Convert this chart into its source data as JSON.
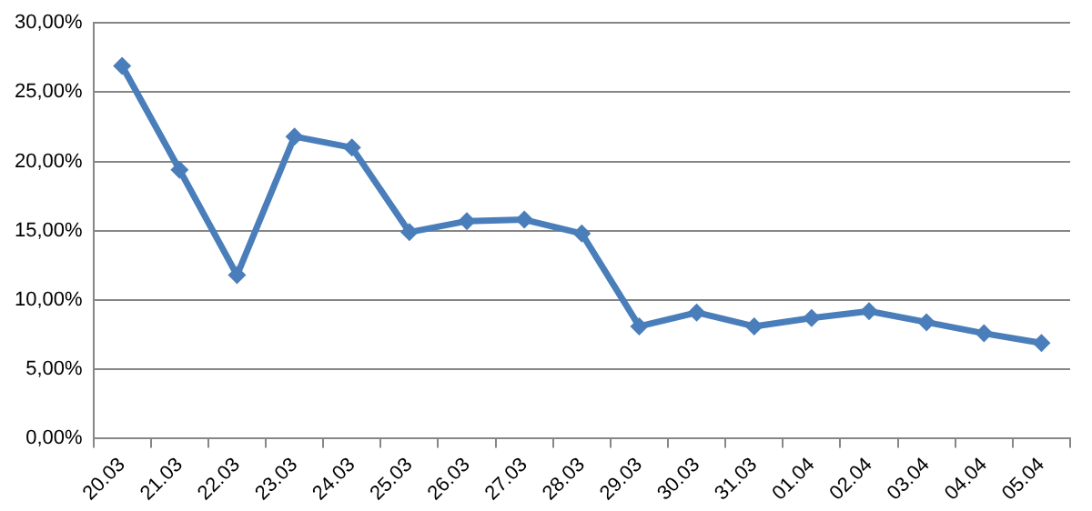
{
  "chart_data": {
    "type": "line",
    "categories": [
      "20.03",
      "21.03",
      "22.03",
      "23.03",
      "24.03",
      "25.03",
      "26.03",
      "27.03",
      "28.03",
      "29.03",
      "30.03",
      "31.03",
      "01.04",
      "02.04",
      "03.04",
      "04.04",
      "05.04"
    ],
    "series": [
      {
        "color": "#4a7ebb",
        "values": [
          26.9,
          19.4,
          11.8,
          21.8,
          21.0,
          14.9,
          15.7,
          15.8,
          14.8,
          8.1,
          9.1,
          8.1,
          8.7,
          9.2,
          8.4,
          7.6,
          6.9
        ]
      }
    ],
    "ylim": [
      0,
      30
    ],
    "yticks": [
      {
        "value": 0,
        "label": "0,00%"
      },
      {
        "value": 5,
        "label": "5,00%"
      },
      {
        "value": 10,
        "label": "10,00%"
      },
      {
        "value": 15,
        "label": "15,00%"
      },
      {
        "value": 20,
        "label": "20,00%"
      },
      {
        "value": 25,
        "label": "25,00%"
      },
      {
        "value": 30,
        "label": "30,00%"
      }
    ],
    "grid": "y",
    "legend": false,
    "marker": "diamond",
    "line_style": "solid"
  }
}
